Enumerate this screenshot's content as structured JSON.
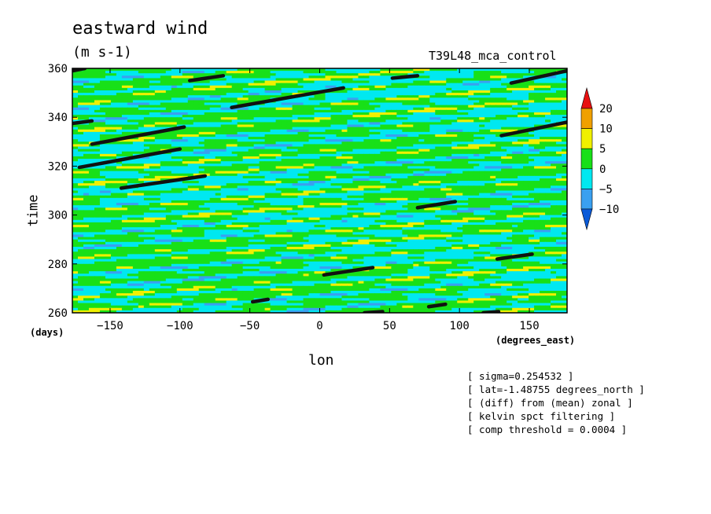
{
  "title": "eastward wind",
  "units": "(m s-1)",
  "run_name": "T39L48_mca_control",
  "ylabel": "time",
  "yunit": "(days)",
  "xlabel": "lon",
  "xunit": "(degrees_east)",
  "notes": [
    "[ sigma=0.254532 ]",
    "[ lat=-1.48755 degrees_north ]",
    "[ (diff) from (mean) zonal ]",
    "[ kelvin spct filtering ]",
    "[ comp threshold = 0.0004 ]"
  ],
  "chart_data": {
    "type": "heatmap",
    "title": "eastward wind",
    "xlabel": "lon",
    "ylabel": "time",
    "xlim": [
      -177,
      177
    ],
    "ylim": [
      260,
      360
    ],
    "x_ticks": [
      -150,
      -100,
      -50,
      0,
      50,
      100,
      150
    ],
    "y_ticks": [
      260,
      280,
      300,
      320,
      340,
      360
    ],
    "colorbar": {
      "levels": [
        -10,
        -5,
        0,
        5,
        10,
        20
      ],
      "tick_labels": [
        "20",
        "10",
        "5",
        "0",
        "-5",
        "-10"
      ],
      "colors": [
        "#0a5ad8",
        "#3aa0f0",
        "#00e8f0",
        "#18e018",
        "#f0f000",
        "#f0a000",
        "#e81010"
      ]
    },
    "threshold_segments": [
      {
        "x": [
          -177,
          -168
        ],
        "y": [
          359,
          360
        ]
      },
      {
        "x": [
          -93,
          -69
        ],
        "y": [
          355,
          357
        ]
      },
      {
        "x": [
          -63,
          17
        ],
        "y": [
          344,
          352
        ]
      },
      {
        "x": [
          52,
          70
        ],
        "y": [
          356,
          357
        ]
      },
      {
        "x": [
          137,
          177
        ],
        "y": [
          354,
          359
        ]
      },
      {
        "x": [
          -177,
          -163
        ],
        "y": [
          337.5,
          338.5
        ]
      },
      {
        "x": [
          -163,
          -97
        ],
        "y": [
          329,
          336
        ]
      },
      {
        "x": [
          -172,
          -100
        ],
        "y": [
          319.5,
          327
        ]
      },
      {
        "x": [
          -142,
          -82
        ],
        "y": [
          311,
          316
        ]
      },
      {
        "x": [
          130,
          177
        ],
        "y": [
          332.5,
          338
        ]
      },
      {
        "x": [
          70,
          97
        ],
        "y": [
          303,
          305.5
        ]
      },
      {
        "x": [
          3,
          38
        ],
        "y": [
          275.5,
          278.5
        ]
      },
      {
        "x": [
          127,
          152
        ],
        "y": [
          282,
          284
        ]
      },
      {
        "x": [
          -48,
          -37
        ],
        "y": [
          264.5,
          265.5
        ]
      },
      {
        "x": [
          78,
          90
        ],
        "y": [
          262.5,
          263.5
        ]
      },
      {
        "x": [
          32,
          45
        ],
        "y": [
          260,
          260.5
        ]
      },
      {
        "x": [
          117,
          128
        ],
        "y": [
          260,
          260.5
        ]
      }
    ]
  }
}
